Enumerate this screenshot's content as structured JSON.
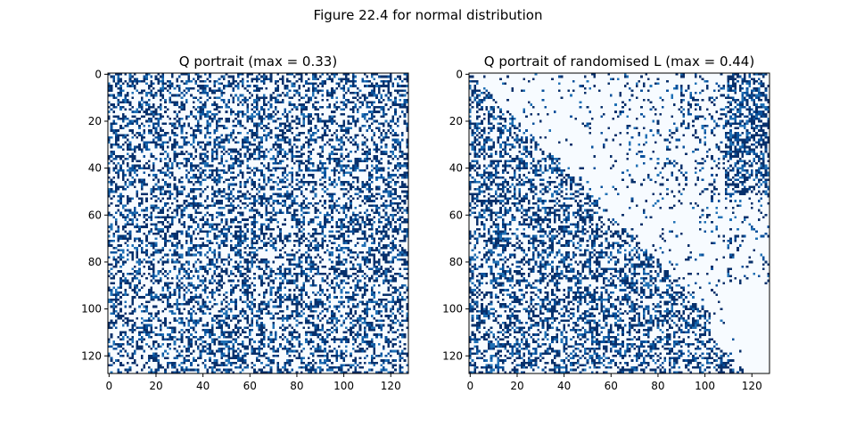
{
  "figure": {
    "suptitle": "Figure 22.4 for normal distribution"
  },
  "chart_data": [
    {
      "type": "heatmap",
      "title": "Q portrait (max =  0.33)",
      "size": 128,
      "pattern": "dense-random",
      "x_ticks": [
        0,
        20,
        40,
        60,
        80,
        100,
        120
      ],
      "y_ticks": [
        0,
        20,
        40,
        60,
        80,
        100,
        120
      ],
      "xlim": [
        -0.5,
        127.5
      ],
      "ylim": [
        127.5,
        -0.5
      ],
      "colormap": [
        "#f7fbff",
        "#08306b"
      ],
      "vmax": 0.33
    },
    {
      "type": "heatmap",
      "title": "Q portrait of randomised L (max =  0.44)",
      "size": 128,
      "pattern": "lower-triangle-dense-upper-sparse",
      "x_ticks": [
        0,
        20,
        40,
        60,
        80,
        100,
        120
      ],
      "y_ticks": [
        0,
        20,
        40,
        60,
        80,
        100,
        120
      ],
      "xlim": [
        -0.5,
        127.5
      ],
      "ylim": [
        127.5,
        -0.5
      ],
      "colormap": [
        "#f7fbff",
        "#08306b"
      ],
      "vmax": 0.44
    }
  ]
}
